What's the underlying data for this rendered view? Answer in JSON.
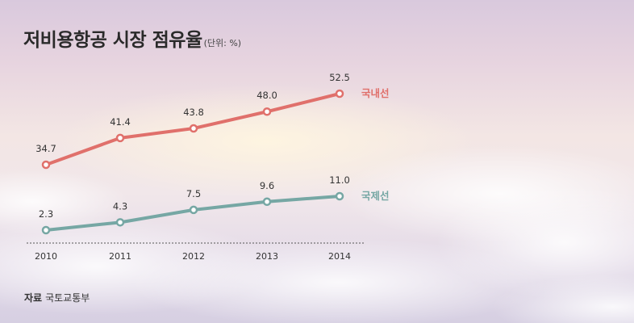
{
  "title": "저비용항공 시장 점유율",
  "unit": "(단위: %)",
  "source": {
    "label": "자료",
    "value": "국토교통부"
  },
  "colors": {
    "domestic": "#e0706b",
    "international": "#76a7a4",
    "baseline": "#555555"
  },
  "chart_data": {
    "type": "line",
    "categories": [
      "2010",
      "2011",
      "2012",
      "2013",
      "2014"
    ],
    "series": [
      {
        "name": "국내선",
        "values": [
          34.7,
          41.4,
          43.8,
          48.0,
          52.5
        ],
        "labels": [
          "34.7",
          "41.4",
          "43.8",
          "48.0",
          "52.5"
        ],
        "color": "#e0706b"
      },
      {
        "name": "국제선",
        "values": [
          2.3,
          4.3,
          7.5,
          9.6,
          11.0
        ],
        "labels": [
          "2.3",
          "4.3",
          "7.5",
          "9.6",
          "11.0"
        ],
        "color": "#76a7a4"
      }
    ],
    "grid": false,
    "legend": "right-end-of-lines"
  }
}
